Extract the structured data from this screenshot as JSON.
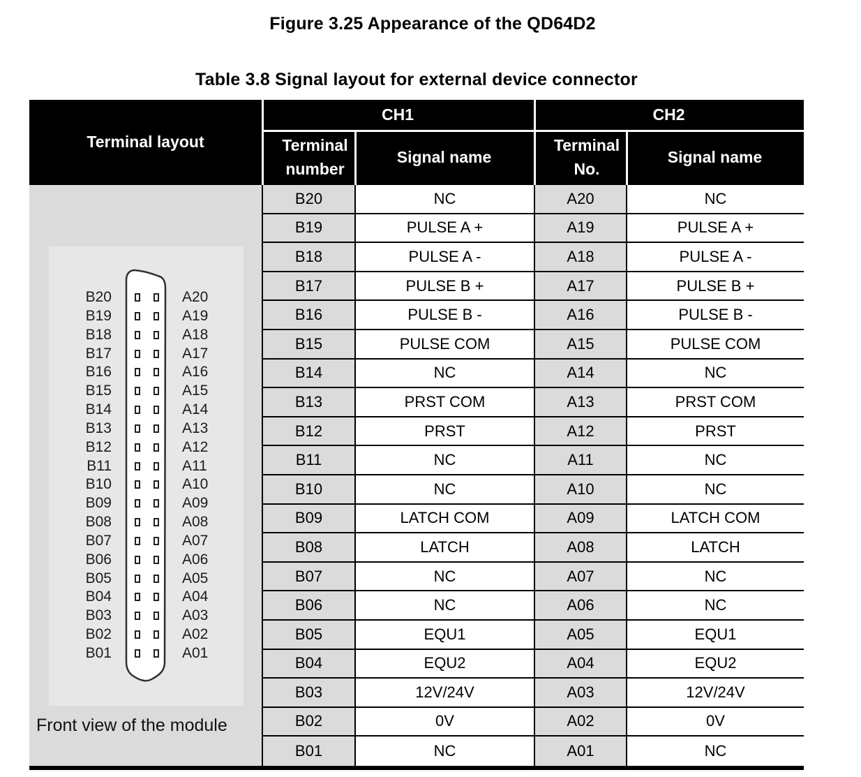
{
  "figure_title": "Figure 3.25 Appearance of the QD64D2",
  "table_title": "Table 3.8  Signal layout for external device connector",
  "colors": {
    "header_bg": "#000000",
    "header_text": "#ffffff",
    "terminal_number_cell_bg": "#dbdbdb",
    "panel_bg": "#dbdbdb",
    "panel_inner_bg": "#e7e7e7",
    "grid_line": "#000000"
  },
  "table": {
    "terminal_layout_header": "Terminal layout",
    "ch1_header": "CH1",
    "ch2_header": "CH2",
    "ch1_terminal_col_header": "Terminal number",
    "ch1_signal_col_header": "Signal name",
    "ch2_terminal_col_header": "Terminal No.",
    "ch2_signal_col_header": "Signal name",
    "rows": [
      {
        "b": "B20",
        "b_signal": "NC",
        "a": "A20",
        "a_signal": "NC"
      },
      {
        "b": "B19",
        "b_signal": "PULSE A +",
        "a": "A19",
        "a_signal": "PULSE A +"
      },
      {
        "b": "B18",
        "b_signal": "PULSE A -",
        "a": "A18",
        "a_signal": "PULSE A -"
      },
      {
        "b": "B17",
        "b_signal": "PULSE B +",
        "a": "A17",
        "a_signal": "PULSE B +"
      },
      {
        "b": "B16",
        "b_signal": "PULSE B -",
        "a": "A16",
        "a_signal": "PULSE B -"
      },
      {
        "b": "B15",
        "b_signal": "PULSE COM",
        "a": "A15",
        "a_signal": "PULSE COM"
      },
      {
        "b": "B14",
        "b_signal": "NC",
        "a": "A14",
        "a_signal": "NC"
      },
      {
        "b": "B13",
        "b_signal": "PRST COM",
        "a": "A13",
        "a_signal": "PRST COM"
      },
      {
        "b": "B12",
        "b_signal": "PRST",
        "a": "A12",
        "a_signal": "PRST"
      },
      {
        "b": "B11",
        "b_signal": "NC",
        "a": "A11",
        "a_signal": "NC"
      },
      {
        "b": "B10",
        "b_signal": "NC",
        "a": "A10",
        "a_signal": "NC"
      },
      {
        "b": "B09",
        "b_signal": "LATCH COM",
        "a": "A09",
        "a_signal": "LATCH COM"
      },
      {
        "b": "B08",
        "b_signal": "LATCH",
        "a": "A08",
        "a_signal": "LATCH"
      },
      {
        "b": "B07",
        "b_signal": "NC",
        "a": "A07",
        "a_signal": "NC"
      },
      {
        "b": "B06",
        "b_signal": "NC",
        "a": "A06",
        "a_signal": "NC"
      },
      {
        "b": "B05",
        "b_signal": "EQU1",
        "a": "A05",
        "a_signal": "EQU1"
      },
      {
        "b": "B04",
        "b_signal": "EQU2",
        "a": "A04",
        "a_signal": "EQU2"
      },
      {
        "b": "B03",
        "b_signal": "12V/24V",
        "a": "A03",
        "a_signal": "12V/24V"
      },
      {
        "b": "B02",
        "b_signal": "0V",
        "a": "A02",
        "a_signal": "0V"
      },
      {
        "b": "B01",
        "b_signal": "NC",
        "a": "A01",
        "a_signal": "NC"
      }
    ]
  },
  "terminal_layout_panel": {
    "b_labels": [
      "B20",
      "B19",
      "B18",
      "B17",
      "B16",
      "B15",
      "B14",
      "B13",
      "B12",
      "B11",
      "B10",
      "B09",
      "B08",
      "B07",
      "B06",
      "B05",
      "B04",
      "B03",
      "B02",
      "B01"
    ],
    "a_labels": [
      "A20",
      "A19",
      "A18",
      "A17",
      "A16",
      "A15",
      "A14",
      "A13",
      "A12",
      "A11",
      "A10",
      "A09",
      "A08",
      "A07",
      "A06",
      "A05",
      "A04",
      "A03",
      "A02",
      "A01"
    ],
    "caption": "Front view of the module"
  }
}
